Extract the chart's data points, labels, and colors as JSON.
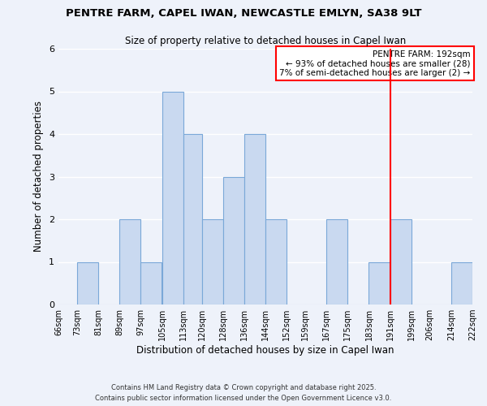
{
  "title1": "PENTRE FARM, CAPEL IWAN, NEWCASTLE EMLYN, SA38 9LT",
  "title2": "Size of property relative to detached houses in Capel Iwan",
  "xlabel": "Distribution of detached houses by size in Capel Iwan",
  "ylabel": "Number of detached properties",
  "bin_edges": [
    66,
    73,
    81,
    89,
    97,
    105,
    113,
    120,
    128,
    136,
    144,
    152,
    159,
    167,
    175,
    183,
    191,
    199,
    206,
    214,
    222
  ],
  "counts": [
    0,
    1,
    0,
    2,
    1,
    5,
    4,
    2,
    3,
    4,
    2,
    0,
    0,
    2,
    0,
    1,
    2,
    0,
    0,
    1
  ],
  "bar_color": "#c9d9f0",
  "bar_edge_color": "#7aa8d8",
  "red_line_x": 191,
  "ylim": [
    0,
    6
  ],
  "legend_title": "PENTRE FARM: 192sqm",
  "legend_line1": "← 93% of detached houses are smaller (28)",
  "legend_line2": "7% of semi-detached houses are larger (2) →",
  "footnote1": "Contains HM Land Registry data © Crown copyright and database right 2025.",
  "footnote2": "Contains public sector information licensed under the Open Government Licence v3.0.",
  "background_color": "#eef2fa",
  "grid_color": "#ffffff",
  "tick_labels": [
    "66sqm",
    "73sqm",
    "81sqm",
    "89sqm",
    "97sqm",
    "105sqm",
    "113sqm",
    "120sqm",
    "128sqm",
    "136sqm",
    "144sqm",
    "152sqm",
    "159sqm",
    "167sqm",
    "175sqm",
    "183sqm",
    "191sqm",
    "199sqm",
    "206sqm",
    "214sqm",
    "222sqm"
  ]
}
